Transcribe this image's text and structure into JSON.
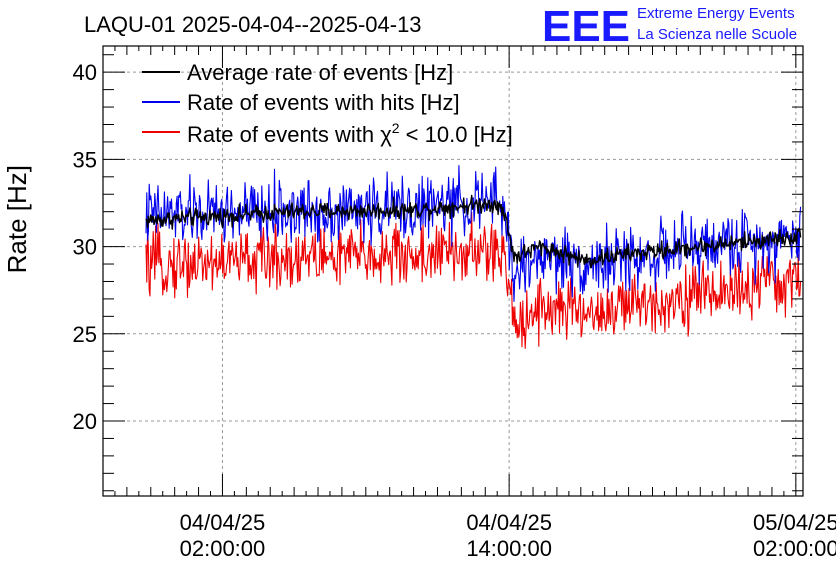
{
  "header": {
    "title": "LAQU-01 2025-04-04--2025-04-13",
    "logo_text": "EEE",
    "logo_line1": "Extreme Energy Events",
    "logo_line2": "La Scienza nelle Scuole",
    "logo_color": "#1a1aff"
  },
  "chart_data": {
    "type": "line",
    "title": "LAQU-01 2025-04-04--2025-04-13",
    "ylabel": "Rate [Hz]",
    "xlabel": "",
    "ylim": [
      15.7,
      41.5
    ],
    "xlim_hours": [
      -3.0,
      26.3
    ],
    "grid": true,
    "legend_position": "top-left",
    "y_ticks": [
      20,
      25,
      30,
      35,
      40
    ],
    "y_tick_labels": [
      "20",
      "25",
      "30",
      "35",
      "40"
    ],
    "x_ticks": [
      {
        "hour": 2,
        "date": "04/04/25",
        "time": "02:00:00"
      },
      {
        "hour": 14,
        "date": "04/04/25",
        "time": "14:00:00"
      },
      {
        "hour": 26,
        "date": "05/04/25",
        "time": "02:00:00"
      }
    ],
    "x_range_hours": [
      -1.2,
      26.2
    ],
    "series": [
      {
        "name": "Average rate of events [Hz]",
        "color": "#000000",
        "noise": 0.25,
        "anchors": [
          [
            -1.2,
            31.5
          ],
          [
            5,
            32.0
          ],
          [
            10,
            32.1
          ],
          [
            13.5,
            32.5
          ],
          [
            13.9,
            31.5
          ],
          [
            14.2,
            29.4
          ],
          [
            15.3,
            30.0
          ],
          [
            17.2,
            29.2
          ],
          [
            18.5,
            29.5
          ],
          [
            22,
            30.0
          ],
          [
            26.2,
            30.6
          ]
        ]
      },
      {
        "name": "Rate of events with hits [Hz]",
        "color": "#0000ee",
        "noise": 0.9,
        "anchors": [
          [
            -1.2,
            31.8
          ],
          [
            5,
            32.0
          ],
          [
            10,
            32.2
          ],
          [
            13.5,
            32.6
          ],
          [
            13.9,
            31.5
          ],
          [
            14.2,
            28.3
          ],
          [
            15.3,
            29.5
          ],
          [
            17.2,
            29.0
          ],
          [
            18.5,
            29.2
          ],
          [
            22,
            30.0
          ],
          [
            26.2,
            30.6
          ]
        ]
      },
      {
        "name": "Rate of events with χ² < 10.0 [Hz]",
        "color": "#ee0000",
        "noise": 0.9,
        "anchors": [
          [
            -1.2,
            28.9
          ],
          [
            5,
            29.4
          ],
          [
            10,
            29.5
          ],
          [
            13.5,
            29.7
          ],
          [
            13.9,
            28.6
          ],
          [
            14.2,
            25.6
          ],
          [
            15.3,
            26.6
          ],
          [
            17.2,
            26.2
          ],
          [
            18.5,
            26.4
          ],
          [
            22,
            27.3
          ],
          [
            26.2,
            28.0
          ]
        ]
      }
    ],
    "legend": [
      {
        "label_main": "Average rate of events [Hz]",
        "label_pre": "",
        "label_sup": "",
        "label_post": "",
        "color": "#000000"
      },
      {
        "label_main": "Rate of events with hits [Hz]",
        "label_pre": "",
        "label_sup": "",
        "label_post": "",
        "color": "#0000ee"
      },
      {
        "label_main": "",
        "label_pre": "Rate of events with χ",
        "label_sup": "2",
        "label_post": " < 10.0 [Hz]",
        "color": "#ee0000"
      }
    ]
  }
}
